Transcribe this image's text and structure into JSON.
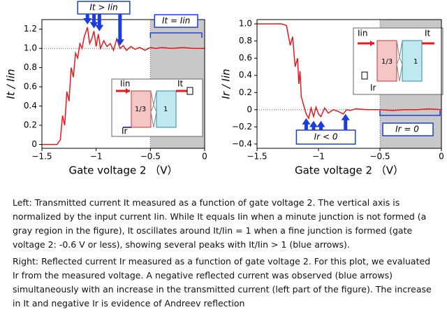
{
  "chart_data": [
    {
      "type": "line",
      "x_label": "Gate voltage 2 （V）",
      "y_label": "It / Iin",
      "x": [
        -1.5,
        -1.4,
        -1.36,
        -1.33,
        -1.31,
        -1.29,
        -1.27,
        -1.25,
        -1.23,
        -1.21,
        -1.19,
        -1.17,
        -1.15,
        -1.13,
        -1.11,
        -1.08,
        -1.06,
        -1.04,
        -1.02,
        -1.0,
        -0.98,
        -0.96,
        -0.93,
        -0.9,
        -0.87,
        -0.84,
        -0.81,
        -0.78,
        -0.75,
        -0.72,
        -0.68,
        -0.64,
        -0.6,
        -0.55,
        -0.5,
        -0.45,
        -0.4,
        -0.3,
        -0.2,
        -0.1,
        0
      ],
      "series": [
        {
          "name": "It",
          "color": "#e8181e",
          "values": [
            0,
            0,
            0,
            0.05,
            0.3,
            0.2,
            0.55,
            0.45,
            0.8,
            0.7,
            0.95,
            0.9,
            1.05,
            1.0,
            1.12,
            1.22,
            1.05,
            1.1,
            1.18,
            1.02,
            1.15,
            1.0,
            1.08,
            1.02,
            1.05,
            0.98,
            1.1,
            1.0,
            1.03,
            0.98,
            1.02,
            0.99,
            1.01,
            0.98,
            1.01,
            1.0,
            1.01,
            1.0,
            1.01,
            1.0,
            1.0
          ]
        }
      ],
      "xlim": [
        -1.5,
        0
      ],
      "ylim": [
        -0.04,
        1.3
      ],
      "xticks": [
        {
          "value": -1.5,
          "label": "−1.5"
        },
        {
          "value": -1,
          "label": "−1"
        },
        {
          "value": -0.5,
          "label": "−0.5"
        },
        0
      ],
      "yticks": [
        0,
        0.2,
        0.4,
        0.6,
        0.8,
        {
          "value": 1,
          "label": "1.0"
        },
        1.2
      ],
      "shaded_xrange": [
        -0.5,
        0
      ],
      "reference_y": 1,
      "arrow_x": [
        -1.08,
        -1.02,
        -0.97,
        -0.78
      ],
      "annotations": [
        "It > Iin",
        "It = Iin"
      ],
      "inset_labels": [
        "Iin",
        "It",
        "1/3",
        "1",
        "Ir"
      ]
    },
    {
      "type": "line",
      "x_label": "Gate voltage 2 （V）",
      "y_label": "Ir / Iin",
      "x": [
        -1.5,
        -1.4,
        -1.3,
        -1.26,
        -1.23,
        -1.21,
        -1.19,
        -1.17,
        -1.16,
        -1.15,
        -1.14,
        -1.12,
        -1.1,
        -1.08,
        -1.06,
        -1.04,
        -1.02,
        -1.0,
        -0.98,
        -0.95,
        -0.92,
        -0.88,
        -0.84,
        -0.8,
        -0.77,
        -0.74,
        -0.7,
        -0.6,
        -0.5,
        -0.4,
        -0.3,
        -0.2,
        -0.1,
        0
      ],
      "series": [
        {
          "name": "Ir",
          "color": "#e8181e",
          "values": [
            1.0,
            1.0,
            1.0,
            0.98,
            0.75,
            0.85,
            0.5,
            0.6,
            0.3,
            0.45,
            0.15,
            0.05,
            -0.05,
            -0.1,
            0.02,
            -0.08,
            0.03,
            -0.05,
            -0.08,
            0.02,
            -0.04,
            0.0,
            -0.02,
            -0.05,
            0.0,
            -0.01,
            0.01,
            0.0,
            0.0,
            -0.01,
            0.0,
            0.0,
            0.01,
            0.0
          ]
        }
      ],
      "xlim": [
        -1.5,
        0
      ],
      "ylim": [
        -0.45,
        1.05
      ],
      "xticks": [
        {
          "value": -1.5,
          "label": "−1.5"
        },
        {
          "value": -1,
          "label": "−1"
        },
        {
          "value": -0.5,
          "label": "−0.5"
        },
        0
      ],
      "yticks": [
        {
          "value": 1,
          "label": "1.0"
        },
        0.8,
        0.6,
        0.4,
        0.2,
        0,
        {
          "value": -0.2,
          "label": "−0.2"
        },
        {
          "value": -0.4,
          "label": "−0.4"
        }
      ],
      "shaded_xrange": [
        -0.5,
        0
      ],
      "reference_y": 0,
      "arrow_x": [
        -1.1,
        -1.04,
        -0.98,
        -0.78
      ],
      "annotations": [
        "Ir < 0",
        "Ir = 0"
      ],
      "inset_labels": [
        "Iin",
        "It",
        "1/3",
        "1",
        "Ir"
      ]
    }
  ],
  "caption": [
    "Left: Transmitted current It measured as a function of gate voltage 2. The vertical axis is normalized by the input current Iin. While It equals Iin when a minute junction is not formed (a gray region in the figure), It oscillates around It/Iin = 1 when a fine junction is formed (gate voltage 2: -0.6 V or less), showing several peaks with It/Iin > 1 (blue arrows).",
    "Right: Reflected current Ir measured as a function of gate voltage 2. For this plot, we evaluated Ir from the measured voltage. A negative reflected current was observed (blue arrows) simultaneously with an increase in the transmitted current (left part of the figure). The increase in It and negative Ir is evidence of Andreev reflection"
  ]
}
